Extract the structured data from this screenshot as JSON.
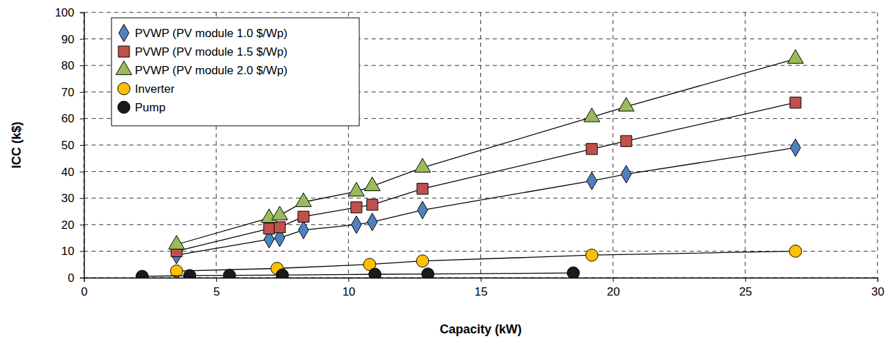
{
  "chart_data": {
    "type": "scatter",
    "x_label": "Capacity (kW)",
    "y_label": "ICC (k$)",
    "xlim": [
      0,
      30
    ],
    "xticks": [
      0,
      5,
      10,
      15,
      20,
      25,
      30
    ],
    "ylim": [
      0,
      100
    ],
    "yticks": [
      0,
      10,
      20,
      30,
      40,
      50,
      60,
      70,
      80,
      90,
      100
    ],
    "grid": true,
    "legend": "upper left",
    "series": [
      {
        "name": "PVWP (PV module 1.0 $/Wp)",
        "color": "#4f81bd",
        "marker": "diamond",
        "line_style": "solid",
        "x": [
          3.5,
          7.0,
          7.4,
          8.3,
          10.3,
          10.9,
          12.8,
          19.2,
          20.5,
          26.9
        ],
        "values": [
          8.5,
          14.5,
          15,
          18,
          20,
          21,
          25.5,
          36.5,
          39,
          49
        ]
      },
      {
        "name": "PVWP (PV module 1.5 $/Wp)",
        "color": "#c0504d",
        "marker": "square",
        "line_style": "solid",
        "x": [
          3.5,
          7.0,
          7.4,
          8.3,
          10.3,
          10.9,
          12.8,
          19.2,
          20.5,
          26.9
        ],
        "values": [
          10,
          18.5,
          19,
          23,
          26.5,
          27.5,
          33.5,
          48.5,
          51.5,
          66
        ]
      },
      {
        "name": "PVWP (PV module 2.0 $/Wp)",
        "color": "#9bbb59",
        "marker": "triangle",
        "line_style": "solid",
        "x": [
          3.5,
          7.0,
          7.4,
          8.3,
          10.3,
          10.9,
          12.8,
          19.2,
          20.5,
          26.9
        ],
        "values": [
          12.5,
          22.5,
          23.5,
          28.5,
          32.5,
          34.5,
          41.5,
          60.5,
          64.5,
          82.5
        ]
      },
      {
        "name": "Inverter",
        "color": "#ffc000",
        "marker": "circle",
        "line_style": "solid",
        "x": [
          3.5,
          7.3,
          10.8,
          12.8,
          19.2,
          26.9
        ],
        "values": [
          2.5,
          3.5,
          5,
          6.3,
          8.5,
          10
        ]
      },
      {
        "name": "Pump",
        "color": "#1a1a1a",
        "marker": "circle",
        "line_style": "solid",
        "x": [
          2.2,
          4.0,
          5.5,
          7.5,
          11.0,
          13.0,
          18.5
        ],
        "values": [
          0.5,
          0.8,
          0.9,
          1.0,
          1.3,
          1.4,
          1.8
        ]
      }
    ]
  }
}
